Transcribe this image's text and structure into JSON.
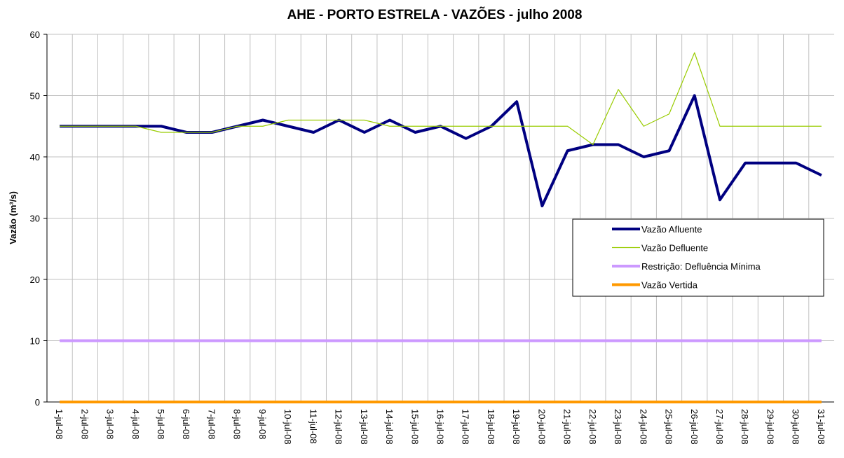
{
  "chart_data": {
    "type": "line",
    "title": "AHE - PORTO ESTRELA - VAZÕES - julho 2008",
    "y_label": "Vazão (m³/s)",
    "categories": [
      "1-jul-08",
      "2-jul-08",
      "3-jul-08",
      "4-jul-08",
      "5-jul-08",
      "6-jul-08",
      "7-jul-08",
      "8-jul-08",
      "9-jul-08",
      "10-jul-08",
      "11-jul-08",
      "12-jul-08",
      "13-jul-08",
      "14-jul-08",
      "15-jul-08",
      "16-jul-08",
      "17-jul-08",
      "18-jul-08",
      "19-jul-08",
      "20-jul-08",
      "21-jul-08",
      "22-jul-08",
      "23-jul-08",
      "24-jul-08",
      "25-jul-08",
      "26-jul-08",
      "27-jul-08",
      "28-jul-08",
      "29-jul-08",
      "30-jul-08",
      "31-jul-08"
    ],
    "series": [
      {
        "name": "Vazão Afluente",
        "color": "#000080",
        "values": [
          45,
          45,
          45,
          45,
          45,
          44,
          44,
          45,
          46,
          45,
          44,
          46,
          44,
          46,
          44,
          45,
          43,
          45,
          49,
          32,
          41,
          42,
          42,
          40,
          41,
          50,
          33,
          39,
          39,
          39,
          37
        ]
      },
      {
        "name": "Vazão Defluente",
        "color": "#99cc00",
        "values": [
          45,
          45,
          45,
          45,
          44,
          44,
          44,
          45,
          45,
          46,
          46,
          46,
          46,
          45,
          45,
          45,
          45,
          45,
          45,
          45,
          45,
          42,
          51,
          45,
          47,
          57,
          45,
          45,
          45,
          45,
          45
        ]
      },
      {
        "name": "Restrição: Defluência Mínima",
        "color": "#cc99ff",
        "values": [
          10,
          10,
          10,
          10,
          10,
          10,
          10,
          10,
          10,
          10,
          10,
          10,
          10,
          10,
          10,
          10,
          10,
          10,
          10,
          10,
          10,
          10,
          10,
          10,
          10,
          10,
          10,
          10,
          10,
          10,
          10
        ]
      },
      {
        "name": "Vazão Vertida",
        "color": "#ff9900",
        "values": [
          0,
          0,
          0,
          0,
          0,
          0,
          0,
          0,
          0,
          0,
          0,
          0,
          0,
          0,
          0,
          0,
          0,
          0,
          0,
          0,
          0,
          0,
          0,
          0,
          0,
          0,
          0,
          0,
          0,
          0,
          0
        ]
      }
    ],
    "ylim": [
      0,
      60
    ],
    "yticks": [
      0,
      10,
      20,
      30,
      40,
      50,
      60
    ],
    "grid": true,
    "legend": "right"
  }
}
